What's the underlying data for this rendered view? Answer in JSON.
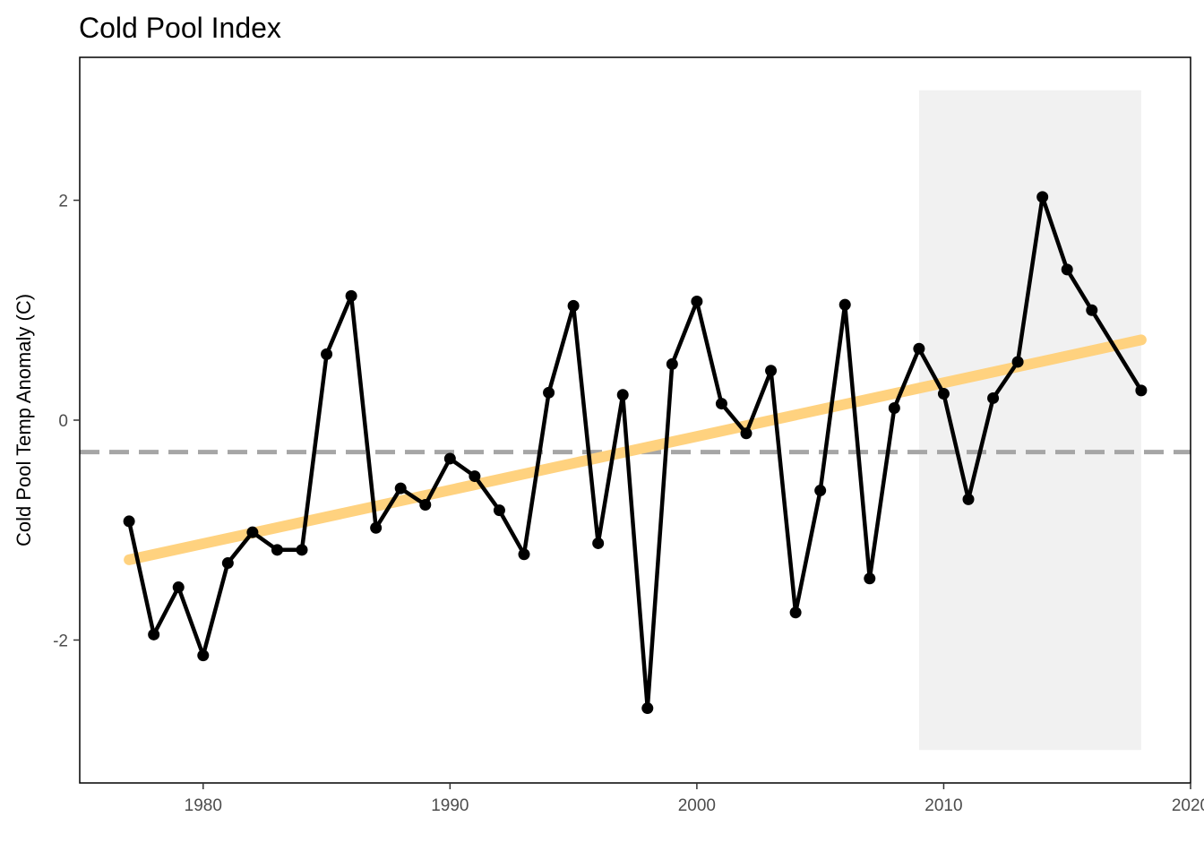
{
  "chart_data": {
    "type": "line",
    "title": "Cold Pool Index",
    "xlabel": "",
    "ylabel": "Cold Pool Temp Anomaly (C)",
    "xlim": [
      1975,
      2020
    ],
    "ylim": [
      -3.3,
      3.3
    ],
    "x_ticks": [
      1980,
      1990,
      2000,
      2010,
      2020
    ],
    "x_tick_labels": [
      "1980",
      "1990",
      "2000",
      "2010",
      "2020"
    ],
    "y_ticks": [
      -2,
      0,
      2
    ],
    "y_tick_labels": [
      "-2",
      "0",
      "2"
    ],
    "grid": false,
    "legend": "none",
    "series": [
      {
        "x": [
          1977,
          1978,
          1979,
          1980,
          1981,
          1982,
          1983,
          1984,
          1985,
          1986,
          1987,
          1988,
          1989,
          1990,
          1991,
          1992,
          1993,
          1994,
          1995,
          1996,
          1997,
          1998,
          1999,
          2000,
          2001,
          2002,
          2003,
          2004,
          2005,
          2006,
          2007,
          2008,
          2009,
          2010,
          2011,
          2012,
          2013,
          2014,
          2015,
          2016,
          2018
        ],
        "values": [
          -0.92,
          -1.95,
          -1.52,
          -2.14,
          -1.3,
          -1.02,
          -1.18,
          -1.18,
          0.6,
          1.13,
          -0.98,
          -0.62,
          -0.77,
          -0.35,
          -0.51,
          -0.82,
          -1.22,
          0.25,
          1.04,
          -1.12,
          0.23,
          -2.62,
          0.51,
          1.08,
          0.15,
          -0.12,
          0.45,
          -1.75,
          -0.64,
          1.05,
          -1.44,
          0.11,
          0.65,
          0.24,
          -0.72,
          0.2,
          0.53,
          2.03,
          1.37,
          1.0,
          0.27
        ]
      }
    ],
    "trend_line": {
      "x": [
        1977,
        2018
      ],
      "values": [
        -1.27,
        0.73
      ]
    },
    "reference_line": {
      "value": -0.29,
      "style": "dashed"
    },
    "shaded_period": {
      "x": [
        2009,
        2018
      ],
      "y": [
        -3.0,
        3.0
      ]
    },
    "colors": {
      "line": "#000000",
      "trend": "#FFD27F",
      "reference": "#A6A6A6",
      "shade": "#F1F1F1",
      "tick_text": "#4d4d4d"
    }
  }
}
